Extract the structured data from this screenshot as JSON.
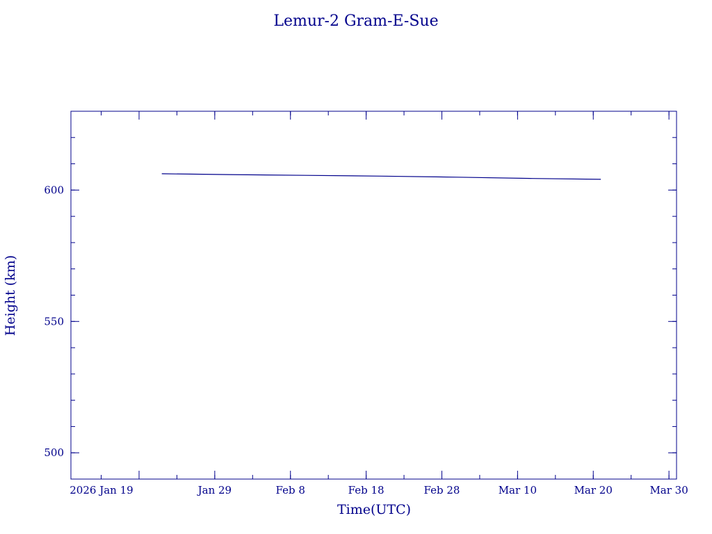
{
  "chart_data": {
    "type": "line",
    "title": "Lemur-2 Gram-E-Sue",
    "xlabel": "Time(UTC)",
    "ylabel": "Height (km)",
    "x_unit": "date",
    "xlim": [
      "2026-01-10",
      "2026-03-31"
    ],
    "ylim": [
      490,
      630
    ],
    "x_ticks": [
      {
        "date": "2026-01-19",
        "label": "2026 Jan 19"
      },
      {
        "date": "2026-01-29",
        "label": "Jan 29"
      },
      {
        "date": "2026-02-08",
        "label": "Feb  8"
      },
      {
        "date": "2026-02-18",
        "label": "Feb 18"
      },
      {
        "date": "2026-02-28",
        "label": "Feb 28"
      },
      {
        "date": "2026-03-10",
        "label": "Mar 10"
      },
      {
        "date": "2026-03-20",
        "label": "Mar 20"
      },
      {
        "date": "2026-03-30",
        "label": "Mar 30"
      }
    ],
    "y_ticks": [
      {
        "value": 500,
        "label": "500"
      },
      {
        "value": 550,
        "label": "550"
      },
      {
        "value": 600,
        "label": "600"
      }
    ],
    "grid": false,
    "series": [
      {
        "x": [
          "2026-01-22",
          "2026-01-31",
          "2026-02-10",
          "2026-02-20",
          "2026-03-02",
          "2026-03-12",
          "2026-03-21"
        ],
        "y": [
          606.2,
          605.9,
          605.6,
          605.3,
          604.9,
          604.4,
          604.1
        ]
      }
    ]
  },
  "colors": {
    "axes": "#00008b",
    "line": "#00008b",
    "background": "#ffffff"
  }
}
